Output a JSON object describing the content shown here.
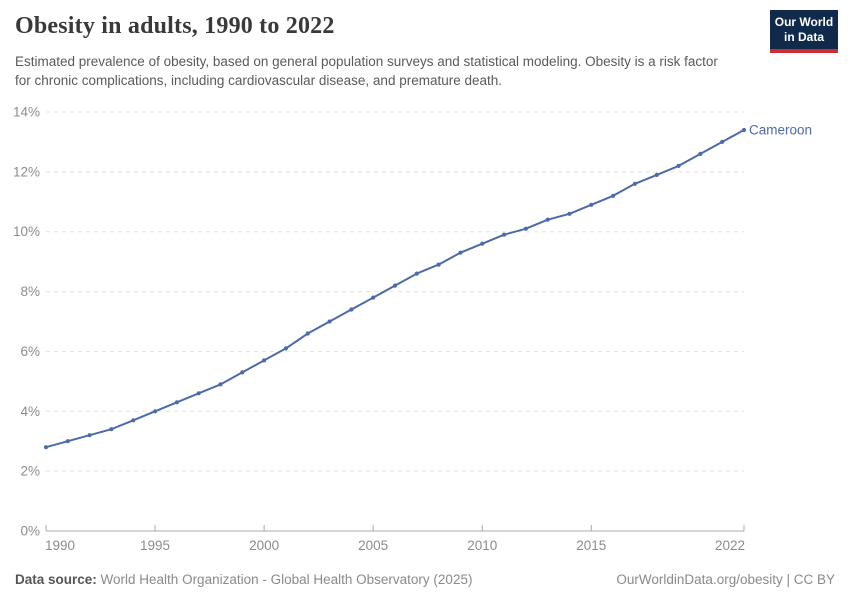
{
  "header": {
    "title": "Obesity in adults, 1990 to 2022",
    "subtitle": "Estimated prevalence of obesity, based on general population surveys and statistical modeling. Obesity is a risk factor for chronic complications, including cardiovascular disease, and premature death.",
    "logo": {
      "line1": "Our World",
      "line2": "in Data",
      "bg_color": "#102a4c",
      "accent_color": "#cb2d35"
    }
  },
  "chart_data": {
    "type": "line",
    "title": "Obesity in adults, 1990 to 2022",
    "xlabel": "",
    "ylabel": "",
    "xlim": [
      1990,
      2022
    ],
    "ylim": [
      0,
      14
    ],
    "x_ticks": [
      1990,
      1995,
      2000,
      2005,
      2010,
      2015,
      2022
    ],
    "y_ticks": [
      0,
      2,
      4,
      6,
      8,
      10,
      12,
      14
    ],
    "y_tick_suffix": "%",
    "grid": "horizontal-dashed",
    "grid_color": "#e3e3e3",
    "axis_color": "#a8a8a8",
    "tick_label_color": "#8c8c8c",
    "legend_position": "end-of-line-label",
    "series": [
      {
        "name": "Cameroon",
        "color": "#4c6ba8",
        "x": [
          1990,
          1991,
          1992,
          1993,
          1994,
          1995,
          1996,
          1997,
          1998,
          1999,
          2000,
          2001,
          2002,
          2003,
          2004,
          2005,
          2006,
          2007,
          2008,
          2009,
          2010,
          2011,
          2012,
          2013,
          2014,
          2015,
          2016,
          2017,
          2018,
          2019,
          2020,
          2021,
          2022
        ],
        "values": [
          2.8,
          3.0,
          3.2,
          3.4,
          3.7,
          4.0,
          4.3,
          4.6,
          4.9,
          5.3,
          5.7,
          6.1,
          6.6,
          7.0,
          7.4,
          7.8,
          8.2,
          8.6,
          8.9,
          9.3,
          9.6,
          9.9,
          10.1,
          10.4,
          10.6,
          10.9,
          11.2,
          11.6,
          11.9,
          12.2,
          12.6,
          13.0,
          13.4
        ]
      }
    ]
  },
  "footer": {
    "source_label": "Data source:",
    "source_text": " World Health Organization - Global Health Observatory (2025)",
    "credit": "OurWorldinData.org/obesity | CC BY"
  }
}
